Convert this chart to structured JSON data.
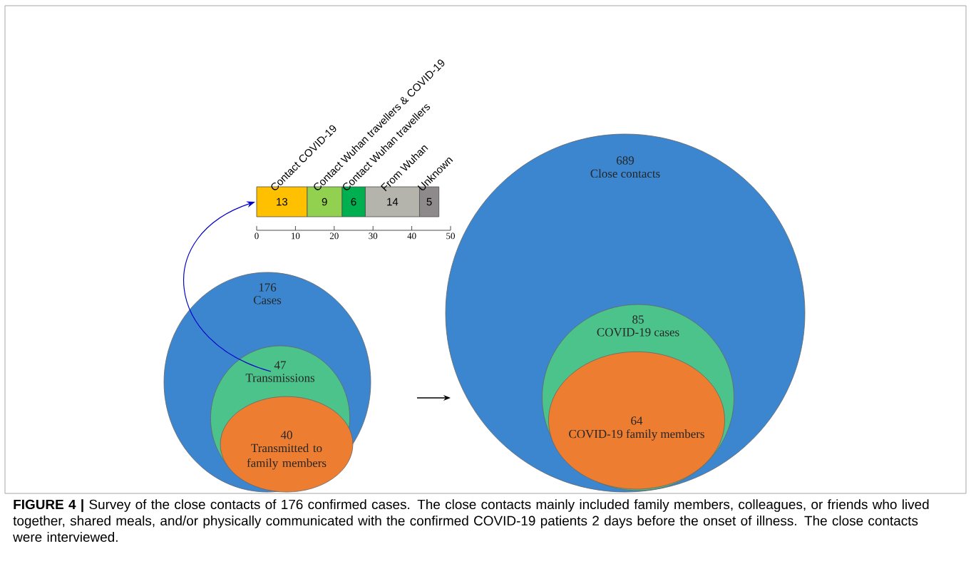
{
  "chart_data": [
    {
      "type": "bar",
      "orientation": "horizontal",
      "stacked": true,
      "categories": [
        null
      ],
      "xlim": [
        0,
        50
      ],
      "xticks": [
        0,
        10,
        20,
        30,
        40,
        50
      ],
      "data_labels": true,
      "series": [
        {
          "name": "Contact COVID-19",
          "color": "#ffc000",
          "values": [
            13
          ]
        },
        {
          "name": "Contact Wuhan travellers & COVID-19",
          "color": "#92d050",
          "values": [
            9
          ]
        },
        {
          "name": "Contact Wuhan travellers",
          "color": "#00b050",
          "values": [
            6
          ]
        },
        {
          "name": "From Wuhan",
          "color": "#b4b4ac",
          "values": [
            14
          ]
        },
        {
          "name": "Unknown",
          "color": "#8e8a8c",
          "values": [
            5
          ]
        }
      ],
      "annotations": [
        "**FIGURE 4 |** Survey of the close contacts of 176 confirmed cases. The close contacts mainly included family members, colleagues, or friends who lived together, shared meals, and/or physically communicated with the confirmed COVID-19 patients 2 days before the onset of illness. The close contacts were interviewed."
      ]
    },
    {
      "type": "other",
      "categories": [
        "Cases",
        "Transmissions",
        "Transmitted to family members"
      ],
      "values": [
        176,
        47,
        40
      ],
      "value_labels": [
        "176",
        "47",
        "40"
      ],
      "colors": [
        "#3b86cf",
        "#4cc38a",
        "#ed7d31"
      ]
    },
    {
      "type": "other",
      "categories": [
        "Close contacts",
        "COVID-19 cases",
        "COVID-19 family members"
      ],
      "values": [
        689,
        85,
        64
      ],
      "value_labels": [
        "689",
        "85",
        "64"
      ],
      "colors": [
        "#3b86cf",
        "#4cc38a",
        "#ed7d31"
      ]
    }
  ]
}
